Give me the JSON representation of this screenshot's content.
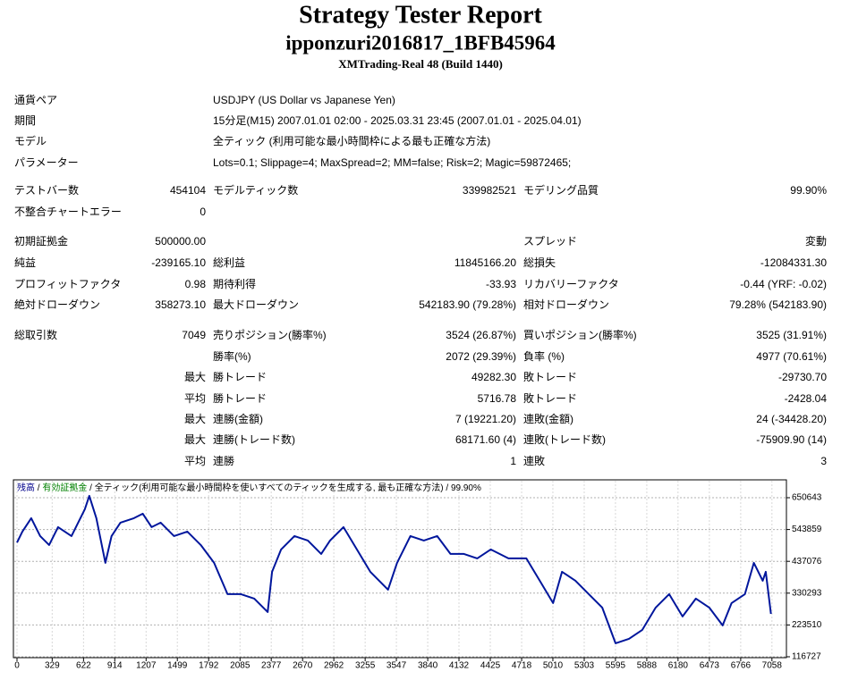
{
  "header": {
    "title": "Strategy Tester Report",
    "subtitle": "ipponzuri2016817_1BFB45964",
    "server": "XMTrading-Real 48 (Build 1440)"
  },
  "settings": [
    {
      "label": "通貨ペア",
      "value": "USDJPY (US Dollar vs Japanese Yen)"
    },
    {
      "label": "期間",
      "value": "15分足(M15) 2007.01.01 02:00 - 2025.03.31 23:45 (2007.01.01 - 2025.04.01)"
    },
    {
      "label": "モデル",
      "value": "全ティック (利用可能な最小時間枠による最も正確な方法)"
    },
    {
      "label": "パラメーター",
      "value": "Lots=0.1; Slippage=4; MaxSpread=2; MM=false; Risk=2; Magic=59872465;"
    }
  ],
  "stats": [
    {
      "label1": "テストバー数",
      "value1": "454104",
      "label2": "モデルティック数",
      "value2": "339982521",
      "label3": "モデリング品質",
      "value3": "99.90%"
    },
    {
      "label1": "不整合チャートエラー",
      "value1": "0"
    },
    {
      "label1": "初期証拠金",
      "value1": "500000.00",
      "label3": "スプレッド",
      "value3": "変動"
    },
    {
      "label1": "純益",
      "value1": "-239165.10",
      "label2": "総利益",
      "value2": "11845166.20",
      "label3": "総損失",
      "value3": "-12084331.30"
    },
    {
      "label1": "プロフィットファクタ",
      "value1": "0.98",
      "label2": "期待利得",
      "value2": "-33.93",
      "label3": "リカバリーファクタ",
      "value3": "-0.44 (YRF: -0.02)"
    },
    {
      "label1": "絶対ドローダウン",
      "value1": "358273.10",
      "label2": "最大ドローダウン",
      "value2": "542183.90 (79.28%)",
      "label3": "相対ドローダウン",
      "value3": "79.28% (542183.90)"
    },
    {
      "label1": "総取引数",
      "value1": "7049",
      "label2": "売りポジション(勝率%)",
      "value2": "3524 (26.87%)",
      "label3": "買いポジション(勝率%)",
      "value3": "3525 (31.91%)"
    },
    {
      "label2": "勝率(%)",
      "value2": "2072 (29.39%)",
      "label3": "負率 (%)",
      "value3": "4977 (70.61%)"
    },
    {
      "value1": "最大",
      "label2": "勝トレード",
      "value2": "49282.30",
      "label3": "敗トレード",
      "value3": "-29730.70"
    },
    {
      "value1": "平均",
      "label2": "勝トレード",
      "value2": "5716.78",
      "label3": "敗トレード",
      "value3": "-2428.04"
    },
    {
      "value1": "最大",
      "label2": "連勝(金額)",
      "value2": "7 (19221.20)",
      "label3": "連敗(金額)",
      "value3": "24 (-34428.20)"
    },
    {
      "value1": "最大",
      "label2": "連勝(トレード数)",
      "value2": "68171.60 (4)",
      "label3": "連敗(トレード数)",
      "value3": "-75909.90 (14)"
    },
    {
      "value1": "平均",
      "label2": "連勝",
      "value2": "1",
      "label3": "連敗",
      "value3": "3"
    }
  ],
  "chart_data": {
    "type": "line",
    "legend": [
      {
        "text": "残高",
        "color": "#00008b"
      },
      {
        "text": "有効証拠金",
        "color": "#008000"
      },
      {
        "text": "全ティック(利用可能な最小時間枠を使いすべてのティックを生成する, 最も正確な方法)",
        "color": "#000000"
      },
      {
        "text": "99.90%",
        "color": "#000000"
      }
    ],
    "separator": " / ",
    "grid": true,
    "xlim": [
      0,
      7160
    ],
    "ylim": [
      116727,
      707600
    ],
    "xticks": [
      0,
      329,
      622,
      914,
      1207,
      1499,
      1792,
      2085,
      2377,
      2670,
      2962,
      3255,
      3547,
      3840,
      4132,
      4425,
      4718,
      5010,
      5303,
      5595,
      5888,
      6180,
      6473,
      6766,
      7058
    ],
    "yticks": [
      116727,
      223510,
      330293,
      437076,
      543859,
      650643
    ],
    "series": [
      {
        "name": "残高",
        "color": "#00169c",
        "x": [
          0,
          50,
          133,
          217,
          300,
          384,
          509,
          634,
          676,
          742,
          826,
          884,
          967,
          1093,
          1176,
          1259,
          1343,
          1468,
          1593,
          1718,
          1843,
          1968,
          2093,
          2218,
          2344,
          2385,
          2469,
          2594,
          2719,
          2844,
          2927,
          3052,
          3178,
          3303,
          3469,
          3553,
          3678,
          3803,
          3928,
          4053,
          4178,
          4303,
          4429,
          4595,
          4762,
          4887,
          5012,
          5096,
          5221,
          5346,
          5471,
          5596,
          5721,
          5846,
          5971,
          6097,
          6222,
          6347,
          6472,
          6597,
          6681,
          6805,
          6889,
          6972,
          7000,
          7049
        ],
        "values": [
          500000,
          537000,
          582000,
          522000,
          492000,
          552000,
          522000,
          612000,
          657000,
          582000,
          432000,
          522000,
          567000,
          582000,
          597000,
          552000,
          567000,
          522000,
          537000,
          492000,
          432000,
          327000,
          327000,
          312000,
          267000,
          402000,
          477000,
          522000,
          507000,
          462000,
          507000,
          552000,
          477000,
          402000,
          342000,
          432000,
          522000,
          507000,
          522000,
          462000,
          462000,
          447000,
          477000,
          447000,
          447000,
          372000,
          297000,
          402000,
          372000,
          327000,
          282000,
          162000,
          177000,
          207000,
          282000,
          327000,
          252000,
          312000,
          282000,
          222000,
          297000,
          327000,
          432000,
          372000,
          402000,
          260835
        ]
      }
    ]
  }
}
